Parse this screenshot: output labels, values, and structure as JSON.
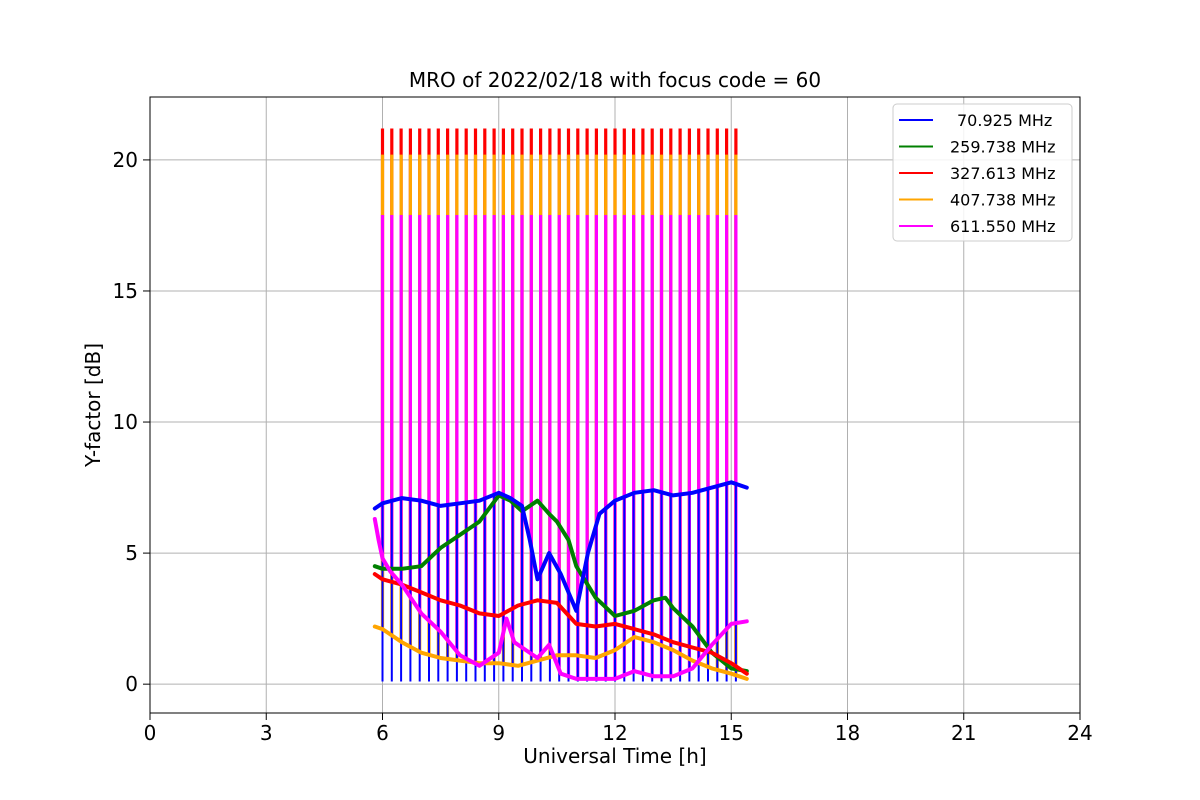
{
  "chart_data": {
    "type": "line",
    "title": "MRO of 2022/02/18 with focus code = 60",
    "xlabel": "Universal Time [h]",
    "ylabel": "Y-factor [dB]",
    "xlim": [
      0,
      24
    ],
    "ylim": [
      -1.1,
      22.4
    ],
    "xticks": [
      0,
      3,
      6,
      9,
      12,
      15,
      18,
      21,
      24
    ],
    "yticks": [
      0,
      5,
      10,
      15,
      20
    ],
    "grid": true,
    "legend_position": "top-right",
    "colors": {
      "70.925 MHz": "#0000ff",
      "259.738 MHz": "#008000",
      "327.613 MHz": "#ff0000",
      "407.738 MHz": "#ffa500",
      "611.550 MHz": "#ff00ff"
    },
    "spikes": {
      "times_h": [
        6.0,
        6.24,
        6.48,
        6.72,
        6.96,
        7.2,
        7.44,
        7.68,
        7.92,
        8.16,
        8.4,
        8.64,
        8.88,
        9.12,
        9.36,
        9.6,
        9.84,
        10.08,
        10.32,
        10.56,
        10.8,
        11.04,
        11.28,
        11.52,
        11.76,
        12.0,
        12.24,
        12.48,
        12.72,
        12.96,
        13.2,
        13.44,
        13.68,
        13.92,
        14.16,
        14.4,
        14.64,
        14.88,
        15.12
      ],
      "peak_values": [
        {
          "name": "327.613 MHz",
          "value": 21.2
        },
        {
          "name": "407.738 MHz",
          "value": 20.2
        },
        {
          "name": "611.550 MHz",
          "value": 17.9
        },
        {
          "name": "70.925 MHz",
          "value": 0.1
        }
      ]
    },
    "series": [
      {
        "name": "70.925 MHz",
        "x": [
          5.8,
          6.0,
          6.5,
          7.0,
          7.5,
          8.0,
          8.5,
          9.0,
          9.3,
          9.6,
          9.8,
          10.0,
          10.3,
          10.6,
          10.8,
          11.0,
          11.3,
          11.6,
          12.0,
          12.5,
          13.0,
          13.5,
          14.0,
          14.5,
          15.0,
          15.4
        ],
        "values": [
          6.7,
          6.9,
          7.1,
          7.0,
          6.8,
          6.9,
          7.0,
          7.3,
          7.1,
          6.8,
          5.5,
          4.0,
          5.0,
          4.2,
          3.5,
          2.8,
          5.0,
          6.5,
          7.0,
          7.3,
          7.4,
          7.2,
          7.3,
          7.5,
          7.7,
          7.5
        ]
      },
      {
        "name": "259.738 MHz",
        "x": [
          5.8,
          6.0,
          6.5,
          7.0,
          7.5,
          8.0,
          8.5,
          9.0,
          9.3,
          9.6,
          10.0,
          10.3,
          10.5,
          10.8,
          11.0,
          11.5,
          12.0,
          12.5,
          13.0,
          13.3,
          13.5,
          14.0,
          14.5,
          15.0,
          15.4
        ],
        "values": [
          4.5,
          4.4,
          4.4,
          4.5,
          5.2,
          5.7,
          6.2,
          7.2,
          7.0,
          6.6,
          7.0,
          6.5,
          6.2,
          5.5,
          4.5,
          3.3,
          2.6,
          2.8,
          3.2,
          3.3,
          2.9,
          2.2,
          1.2,
          0.6,
          0.5
        ]
      },
      {
        "name": "327.613 MHz",
        "x": [
          5.8,
          6.0,
          6.5,
          7.0,
          7.5,
          8.0,
          8.5,
          9.0,
          9.5,
          10.0,
          10.5,
          11.0,
          11.5,
          12.0,
          12.5,
          13.0,
          13.5,
          14.0,
          14.5,
          15.0,
          15.4
        ],
        "values": [
          4.2,
          4.0,
          3.8,
          3.5,
          3.2,
          3.0,
          2.7,
          2.6,
          3.0,
          3.2,
          3.1,
          2.3,
          2.2,
          2.3,
          2.1,
          1.9,
          1.6,
          1.4,
          1.2,
          0.8,
          0.4
        ]
      },
      {
        "name": "407.738 MHz",
        "x": [
          5.8,
          6.0,
          6.5,
          7.0,
          7.5,
          8.0,
          8.5,
          9.0,
          9.5,
          10.0,
          10.5,
          11.0,
          11.5,
          12.0,
          12.5,
          13.0,
          13.5,
          14.0,
          14.5,
          15.0,
          15.4
        ],
        "values": [
          2.2,
          2.1,
          1.6,
          1.2,
          1.0,
          0.9,
          0.8,
          0.8,
          0.7,
          0.9,
          1.1,
          1.1,
          1.0,
          1.3,
          1.8,
          1.6,
          1.3,
          0.9,
          0.6,
          0.4,
          0.2
        ]
      },
      {
        "name": "611.550 MHz",
        "x": [
          5.8,
          5.9,
          6.0,
          6.2,
          6.5,
          7.0,
          7.5,
          8.0,
          8.5,
          9.0,
          9.2,
          9.4,
          9.6,
          10.0,
          10.3,
          10.6,
          11.0,
          11.5,
          12.0,
          12.5,
          13.0,
          13.5,
          14.0,
          14.5,
          15.0,
          15.4
        ],
        "values": [
          6.3,
          5.5,
          4.8,
          4.3,
          3.8,
          2.7,
          2.0,
          1.1,
          0.7,
          1.2,
          2.5,
          1.6,
          1.4,
          1.0,
          1.5,
          0.4,
          0.2,
          0.2,
          0.2,
          0.5,
          0.3,
          0.3,
          0.6,
          1.5,
          2.3,
          2.4
        ]
      }
    ]
  }
}
